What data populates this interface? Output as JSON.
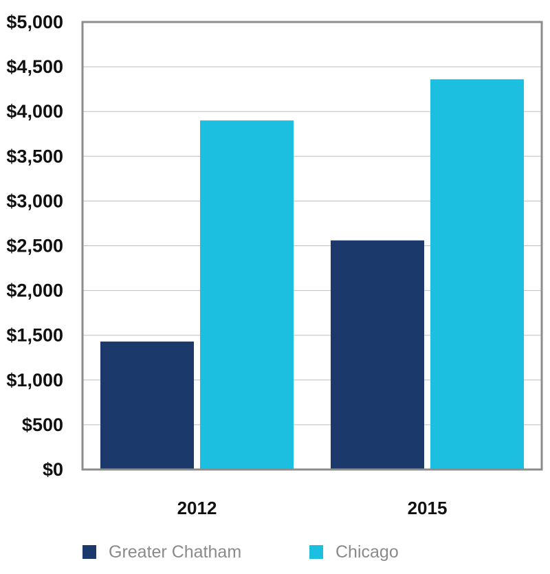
{
  "chart_data": {
    "type": "bar",
    "categories": [
      "2012",
      "2015"
    ],
    "series": [
      {
        "name": "Greater Chatham",
        "values": [
          1430,
          2560
        ],
        "color": "#1b3a6b"
      },
      {
        "name": "Chicago",
        "values": [
          3900,
          4360
        ],
        "color": "#1cbfdf"
      }
    ],
    "ylim": [
      0,
      5000
    ],
    "yticks": [
      0,
      500,
      1000,
      1500,
      2000,
      2500,
      3000,
      3500,
      4000,
      4500,
      5000
    ],
    "ytick_labels": [
      "$0",
      "$500",
      "$1,000",
      "$1,500",
      "$2,000",
      "$2,500",
      "$3,000",
      "$3,500",
      "$4,000",
      "$4,500",
      "$5,000"
    ],
    "grid": true,
    "legend_position": "bottom",
    "title": "",
    "xlabel": "",
    "ylabel": ""
  }
}
